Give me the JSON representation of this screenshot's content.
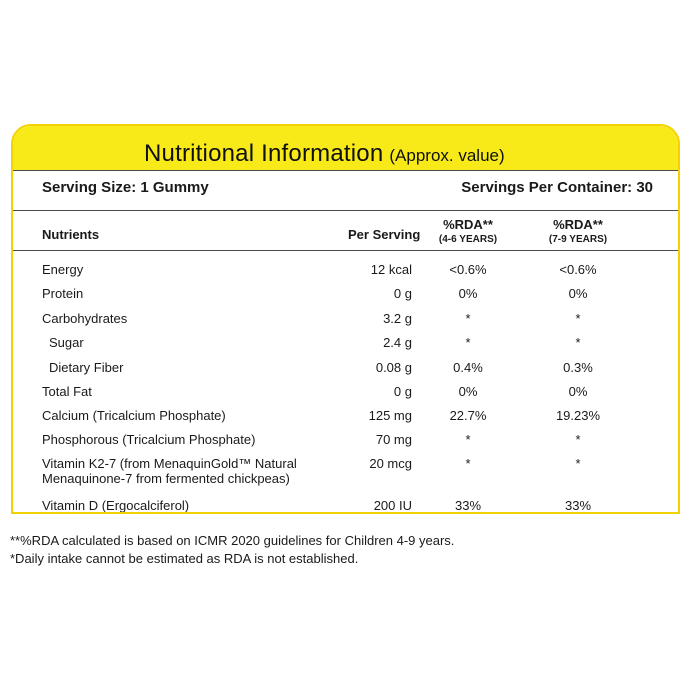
{
  "title": {
    "main": "Nutritional Information",
    "sub": "(Approx. value)"
  },
  "serving": {
    "size": "Serving Size: 1 Gummy",
    "per_container": "Servings Per Container: 30"
  },
  "headers": {
    "nutrients": "Nutrients",
    "per_serving": "Per Serving",
    "rda1": "%RDA**",
    "rda1_sub": "(4-6 YEARS)",
    "rda2": "%RDA**",
    "rda2_sub": "(7-9 YEARS)"
  },
  "rows": [
    {
      "name": "Energy",
      "per_serving": "12 kcal",
      "rda1": "<0.6%",
      "rda2": "<0.6%"
    },
    {
      "name": "Protein",
      "per_serving": "0 g",
      "rda1": "0%",
      "rda2": "0%"
    },
    {
      "name": "Carbohydrates",
      "per_serving": "3.2 g",
      "rda1": "*",
      "rda2": "*"
    },
    {
      "name": "Sugar",
      "per_serving": "2.4 g",
      "rda1": "*",
      "rda2": "*"
    },
    {
      "name": "Dietary Fiber",
      "per_serving": "0.08 g",
      "rda1": "0.4%",
      "rda2": "0.3%"
    },
    {
      "name": "Total Fat",
      "per_serving": "0 g",
      "rda1": "0%",
      "rda2": "0%"
    },
    {
      "name": "Calcium (Tricalcium Phosphate)",
      "per_serving": "125 mg",
      "rda1": "22.7%",
      "rda2": "19.23%"
    },
    {
      "name": "Phosphorous (Tricalcium Phosphate)",
      "per_serving": "70 mg",
      "rda1": "*",
      "rda2": "*"
    },
    {
      "name": "Vitamin K2-7 (from MenaquinGold™ Natural",
      "name_line2": "Menaquinone-7  from fermented chickpeas)",
      "per_serving": "20 mcg",
      "rda1": "*",
      "rda2": "*"
    },
    {
      "name": "Vitamin D (Ergocalciferol)",
      "per_serving": "200 IU",
      "rda1": "33%",
      "rda2": "33%"
    }
  ],
  "footnotes": [
    "**%RDA calculated is based on ICMR 2020 guidelines for Children 4-9 years.",
    "*Daily intake cannot be estimated as RDA is not established."
  ],
  "colors": {
    "accent_yellow": "#f8ea19",
    "border_yellow": "#f2d200"
  }
}
